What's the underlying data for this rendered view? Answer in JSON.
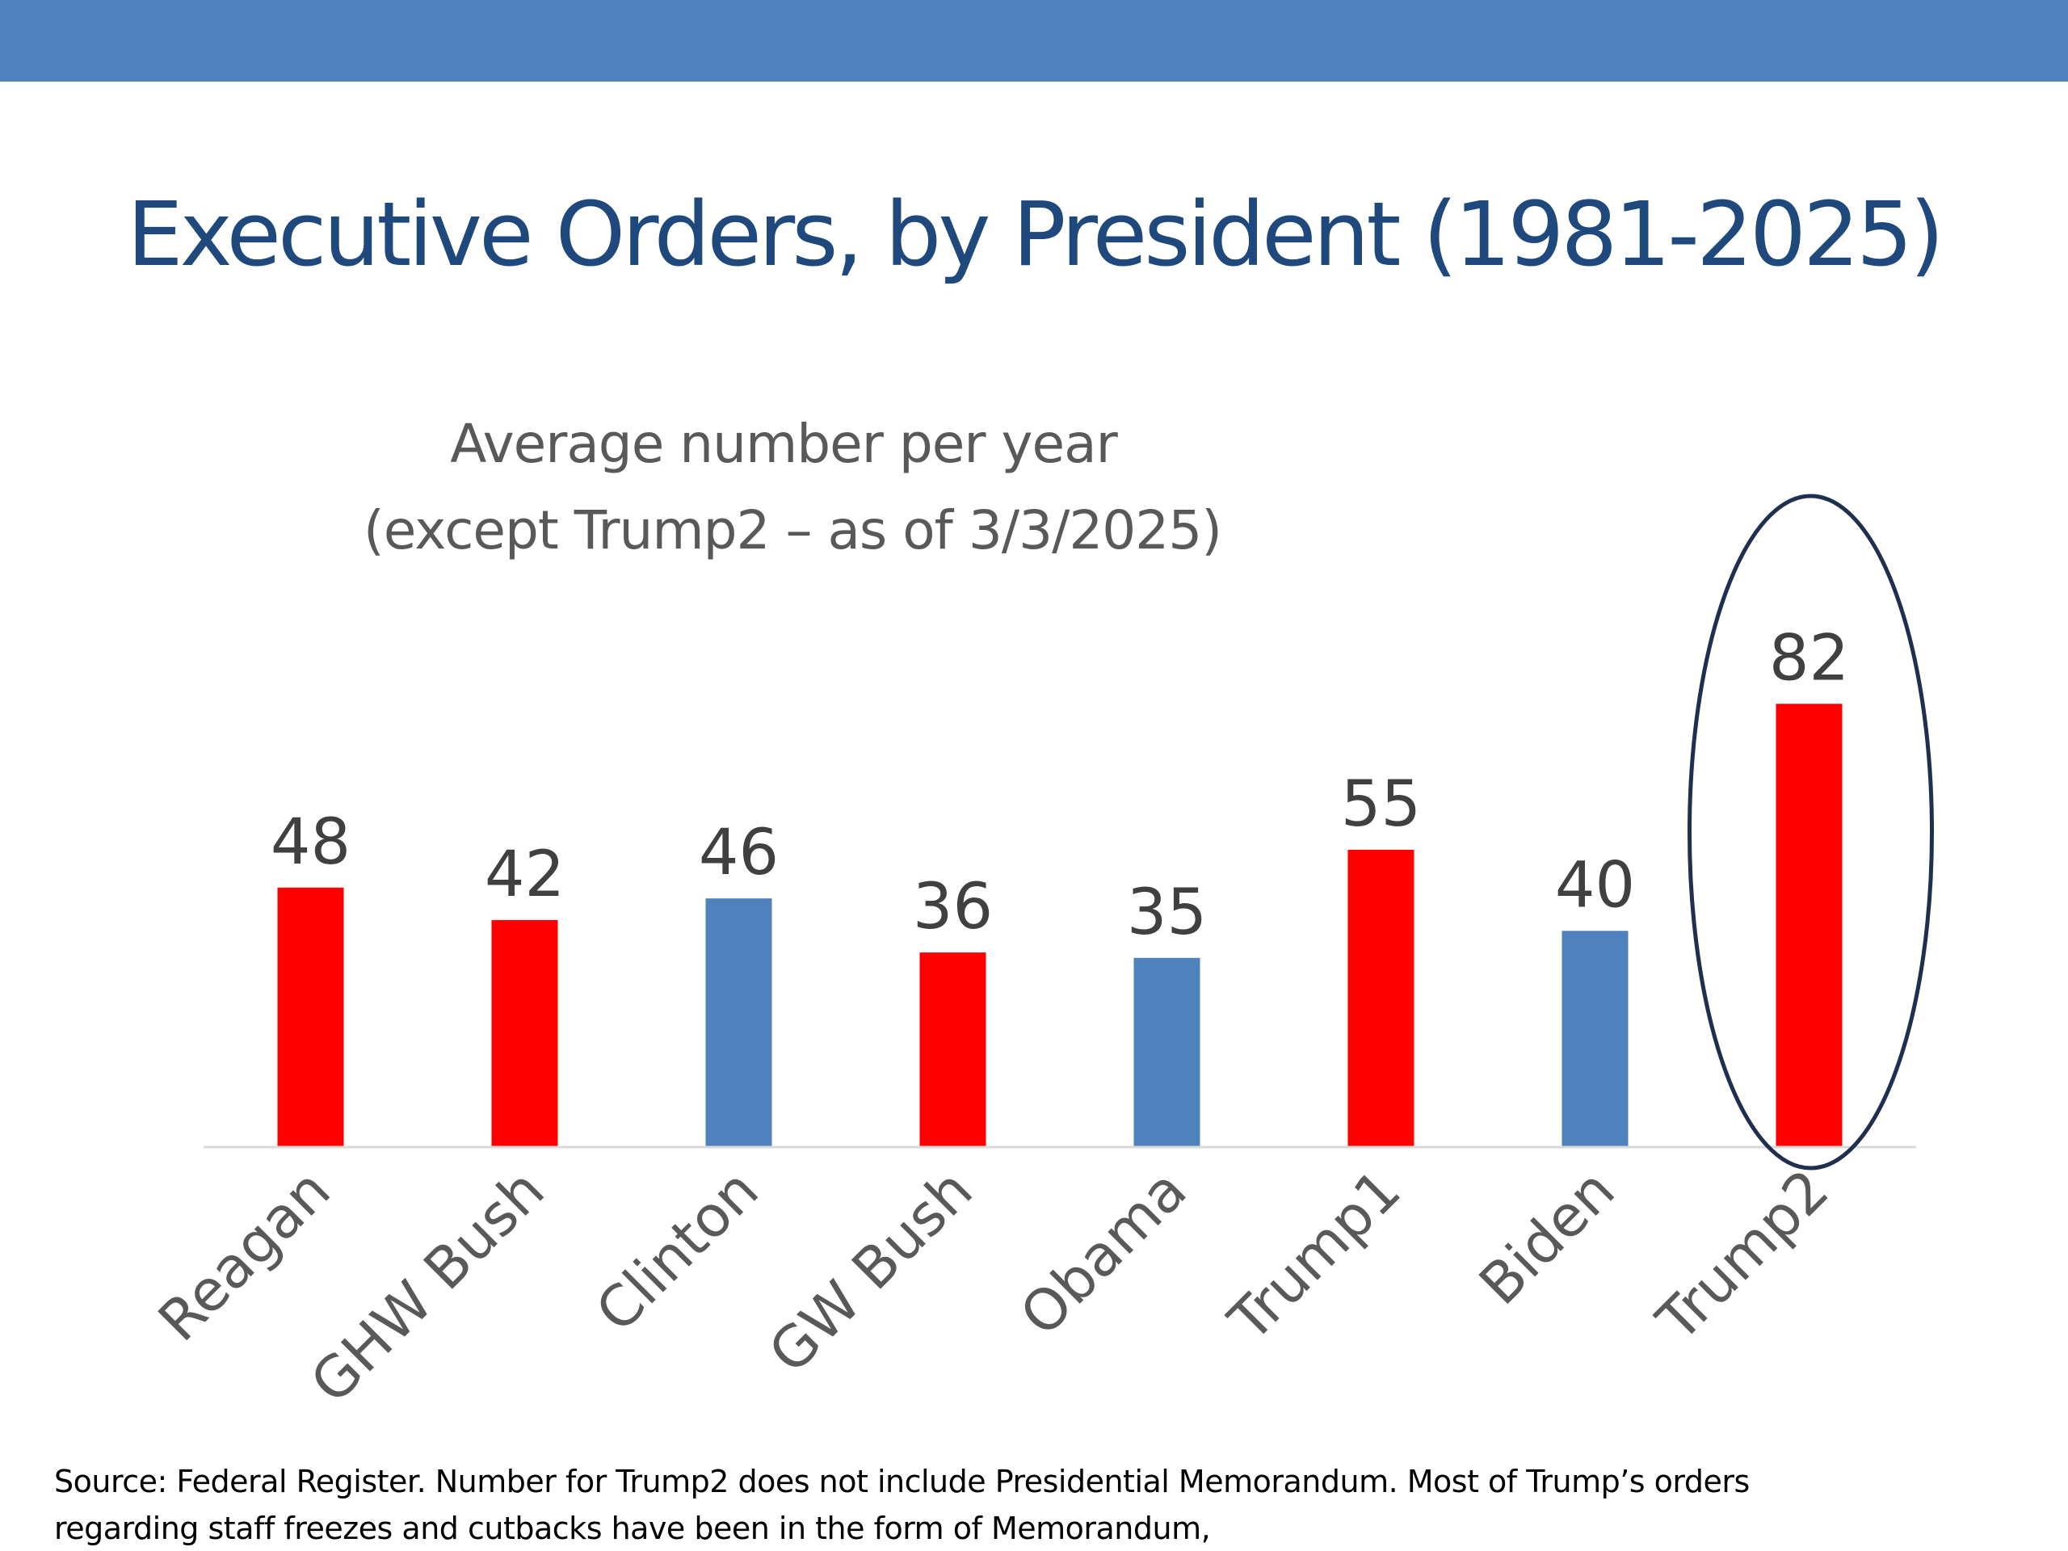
{
  "colors": {
    "header_bar": "#4f81bd",
    "title": "#1f497d",
    "republican": "#ff0000",
    "democrat": "#4f81bd",
    "highlight_ring": "#1f2f4f",
    "axis": "#d9d9d9",
    "labels": "#404040"
  },
  "title": "Executive Orders, by President (1981-2025)",
  "subtitle": {
    "line1": "Average number per year",
    "line2": "(except Trump2 – as of 3/3/2025)"
  },
  "chart_data": {
    "type": "bar",
    "title": "Average number per year",
    "subtitle": "(except Trump2 – as of 3/3/2025)",
    "categories": [
      "Reagan",
      "GHW Bush",
      "Clinton",
      "GW Bush",
      "Obama",
      "Trump1",
      "Biden",
      "Trump2"
    ],
    "values": [
      48,
      42,
      46,
      36,
      35,
      55,
      40,
      82
    ],
    "bar_colors": [
      "#ff0000",
      "#ff0000",
      "#4f81bd",
      "#ff0000",
      "#4f81bd",
      "#ff0000",
      "#4f81bd",
      "#ff0000"
    ],
    "highlighted_category": "Trump2",
    "data_labels": true,
    "xlabel": "",
    "ylabel": "",
    "ylim": [
      0,
      82
    ],
    "grid": false,
    "legend": "none",
    "x_tick_rotation": -45
  },
  "source": {
    "line1": "Source: Federal Register. Number for Trump2 does not include Presidential Memorandum. Most of Trump’s orders",
    "line2": "regarding staff freezes and cutbacks have been in the form of Memorandum,"
  }
}
